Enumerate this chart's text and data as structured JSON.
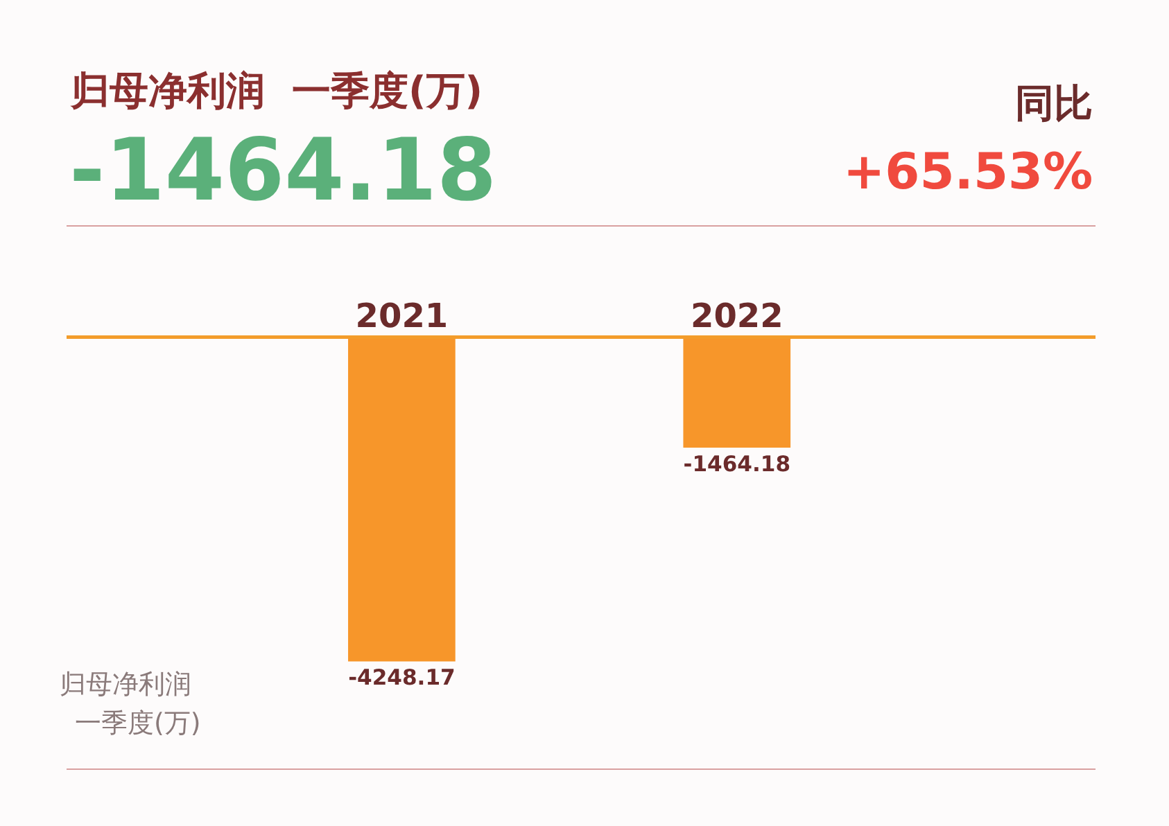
{
  "chart_data": {
    "type": "bar",
    "title": "归母净利润  一季度(万)",
    "categories": [
      "2021",
      "2022"
    ],
    "values": [
      -4248.17,
      -1464.18
    ],
    "color": "#f7962a",
    "data_labels": true,
    "annotations": [
      "-1464.18",
      "同比",
      "+65.53%",
      "归母净利润",
      "一季度(万)"
    ]
  }
}
